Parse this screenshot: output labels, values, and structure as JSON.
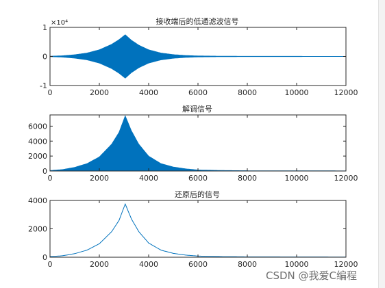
{
  "watermark": "CSDN @我爱C编程",
  "chart_data": [
    {
      "type": "area",
      "title": "接收端后的低通滤波信号",
      "xlim": [
        0,
        12000
      ],
      "ylim": [
        -10000,
        10000
      ],
      "xticks": [
        0,
        2000,
        4000,
        6000,
        8000,
        10000,
        12000
      ],
      "yticks": [
        -1,
        0,
        1
      ],
      "exponent_label": "×10⁴",
      "series": [
        {
          "style": "symmetric-envelope",
          "color": "#0072BD",
          "peak_x": 3050,
          "peak_y": 7500,
          "x": [
            0,
            500,
            1000,
            1500,
            2000,
            2500,
            2800,
            3050,
            3300,
            3600,
            4000,
            4500,
            5000,
            5500,
            6000,
            7000,
            8000,
            12000
          ],
          "y": [
            100,
            250,
            600,
            1200,
            2300,
            4200,
            5800,
            7500,
            5600,
            3900,
            2300,
            1200,
            650,
            350,
            200,
            100,
            70,
            50
          ]
        }
      ]
    },
    {
      "type": "area",
      "title": "解调信号",
      "xlim": [
        0,
        12000
      ],
      "ylim": [
        0,
        7500
      ],
      "xticks": [
        0,
        2000,
        4000,
        6000,
        8000,
        10000,
        12000
      ],
      "yticks": [
        0,
        2000,
        4000,
        6000
      ],
      "series": [
        {
          "style": "filled-envelope",
          "color": "#0072BD",
          "peak_x": 3050,
          "peak_y": 7400,
          "x": [
            0,
            500,
            1000,
            1500,
            2000,
            2500,
            2800,
            3050,
            3300,
            3600,
            4000,
            4500,
            5000,
            5500,
            6000,
            7000,
            8000,
            12000
          ],
          "y": [
            80,
            200,
            500,
            1000,
            1900,
            3600,
            5200,
            7400,
            5400,
            3600,
            2000,
            1000,
            550,
            300,
            150,
            80,
            50,
            30
          ]
        }
      ]
    },
    {
      "type": "line",
      "title": "还原后的信号",
      "xlim": [
        0,
        12000
      ],
      "ylim": [
        0,
        4000
      ],
      "xticks": [
        0,
        2000,
        4000,
        6000,
        8000,
        10000,
        12000
      ],
      "yticks": [
        0,
        2000,
        4000
      ],
      "series": [
        {
          "style": "line",
          "color": "#0072BD",
          "peak_x": 3050,
          "peak_y": 3750,
          "x": [
            0,
            500,
            1000,
            1500,
            2000,
            2500,
            2800,
            3050,
            3300,
            3600,
            4000,
            4500,
            5000,
            5500,
            6000,
            7000,
            8000,
            12000
          ],
          "y": [
            40,
            100,
            250,
            500,
            950,
            1800,
            2600,
            3750,
            2700,
            1800,
            1000,
            500,
            270,
            150,
            80,
            40,
            25,
            15
          ]
        }
      ]
    }
  ]
}
